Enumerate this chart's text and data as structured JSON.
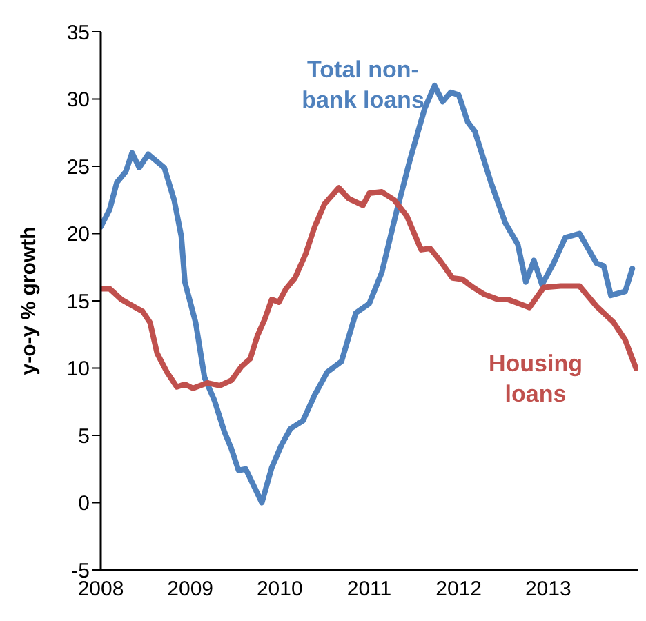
{
  "chart_data": {
    "type": "line",
    "ylabel": "y-o-y % growth",
    "xlim": [
      2008,
      2014
    ],
    "xticks": [
      2008,
      2009,
      2010,
      2011,
      2012,
      2013
    ],
    "ylim": [
      -5,
      35
    ],
    "yticks": [
      -5,
      0,
      5,
      10,
      15,
      20,
      25,
      30,
      35
    ],
    "grid": false,
    "legend": false,
    "marker": "none",
    "series": [
      {
        "name": "Total non-bank loans",
        "color": "#4f81bd",
        "x": [
          2008.0,
          2008.1,
          2008.18,
          2008.28,
          2008.35,
          2008.43,
          2008.53,
          2008.71,
          2008.82,
          2008.9,
          2008.94,
          2009.06,
          2009.16,
          2009.27,
          2009.38,
          2009.46,
          2009.54,
          2009.62,
          2009.8,
          2009.91,
          2010.02,
          2010.12,
          2010.26,
          2010.39,
          2010.53,
          2010.69,
          2010.85,
          2011.0,
          2011.14,
          2011.3,
          2011.46,
          2011.62,
          2011.73,
          2011.82,
          2011.91,
          2012.0,
          2012.1,
          2012.18,
          2012.36,
          2012.52,
          2012.66,
          2012.75,
          2012.84,
          2012.93,
          2013.06,
          2013.19,
          2013.35,
          2013.54,
          2013.62,
          2013.7,
          2013.86,
          2013.94
        ],
        "values": [
          20.5,
          21.8,
          23.8,
          24.6,
          26.0,
          24.9,
          25.9,
          24.9,
          22.5,
          19.8,
          16.4,
          13.4,
          9.3,
          7.6,
          5.3,
          4.0,
          2.4,
          2.5,
          0,
          2.6,
          4.3,
          5.5,
          6.1,
          8.0,
          9.7,
          10.5,
          14.1,
          14.8,
          17.1,
          21.5,
          25.6,
          29.3,
          31.0,
          29.8,
          30.5,
          30.3,
          28.3,
          27.6,
          23.8,
          20.8,
          19.2,
          16.4,
          18.0,
          16.2,
          17.8,
          19.7,
          20.0,
          17.8,
          17.6,
          15.4,
          15.7,
          17.4
        ]
      },
      {
        "name": "Housing loans",
        "color": "#c0504d",
        "x": [
          2008.0,
          2008.1,
          2008.23,
          2008.39,
          2008.47,
          2008.55,
          2008.63,
          2008.74,
          2008.85,
          2008.94,
          2009.03,
          2009.19,
          2009.33,
          2009.46,
          2009.57,
          2009.67,
          2009.75,
          2009.83,
          2009.91,
          2009.99,
          2010.07,
          2010.17,
          2010.29,
          2010.39,
          2010.5,
          2010.66,
          2010.77,
          2010.93,
          2011.0,
          2011.14,
          2011.28,
          2011.42,
          2011.58,
          2011.68,
          2011.79,
          2011.93,
          2012.04,
          2012.14,
          2012.28,
          2012.44,
          2012.55,
          2012.79,
          2012.95,
          2013.14,
          2013.35,
          2013.54,
          2013.73,
          2013.86,
          2013.98
        ],
        "values": [
          15.9,
          15.9,
          15.1,
          14.5,
          14.2,
          13.4,
          11.1,
          9.7,
          8.6,
          8.8,
          8.5,
          8.9,
          8.7,
          9.1,
          10.1,
          10.7,
          12.4,
          13.6,
          15.1,
          14.9,
          15.9,
          16.7,
          18.5,
          20.5,
          22.2,
          23.4,
          22.6,
          22.1,
          23.0,
          23.1,
          22.5,
          21.3,
          18.8,
          18.9,
          18.0,
          16.7,
          16.6,
          16.1,
          15.5,
          15.1,
          15.1,
          14.5,
          16.0,
          16.1,
          16.1,
          14.6,
          13.4,
          12.1,
          10.0
        ]
      }
    ]
  }
}
